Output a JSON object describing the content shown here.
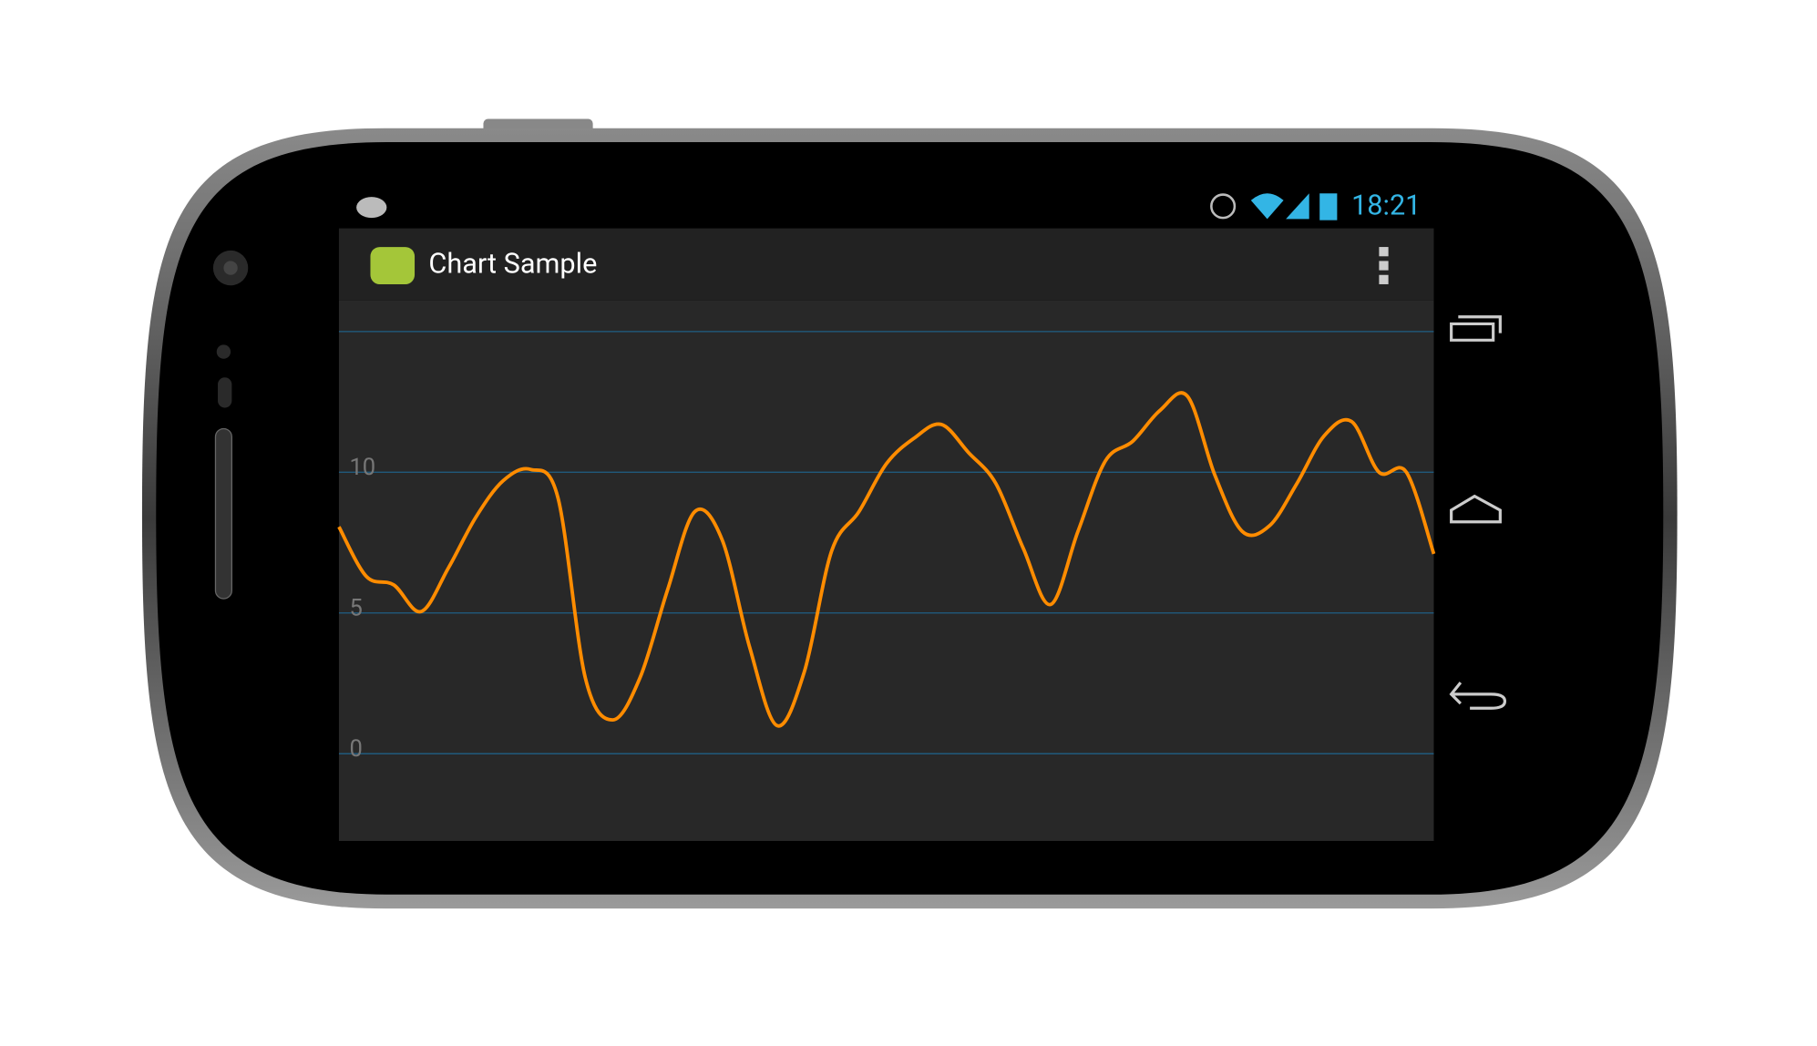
{
  "status_bar": {
    "time": "18:21"
  },
  "action_bar": {
    "title": "Chart Sample"
  },
  "chart_data": {
    "type": "line",
    "categories": [
      null,
      null,
      null,
      null,
      null,
      null,
      null,
      null,
      null,
      null,
      null,
      null,
      null,
      null,
      null,
      null,
      null,
      null,
      null,
      null,
      null,
      null,
      null,
      null,
      null,
      null,
      null,
      null,
      null,
      null,
      null,
      null,
      null,
      null,
      null,
      null,
      null,
      null,
      null,
      null,
      null
    ],
    "series": [
      {
        "color": "#ff8c00",
        "values": [
          8.06,
          6.3,
          6.0,
          5.05,
          6.6,
          8.4,
          9.7,
          10.1,
          9.1,
          2.7,
          1.2,
          2.7,
          5.8,
          8.6,
          7.6,
          3.8,
          1.0,
          2.9,
          7.2,
          8.6,
          10.3,
          11.2,
          11.7,
          10.7,
          9.6,
          7.3,
          5.3,
          7.9,
          10.4,
          11.1,
          12.2,
          12.7,
          9.9,
          7.9,
          8.1,
          9.6,
          11.3,
          11.8,
          10.0,
          10.0,
          7.1
        ]
      }
    ],
    "ylim": [
      -3.1,
      16.1
    ],
    "yticks": [
      0,
      5,
      10,
      {
        "value": 15,
        "label": null
      }
    ],
    "grid": true
  }
}
